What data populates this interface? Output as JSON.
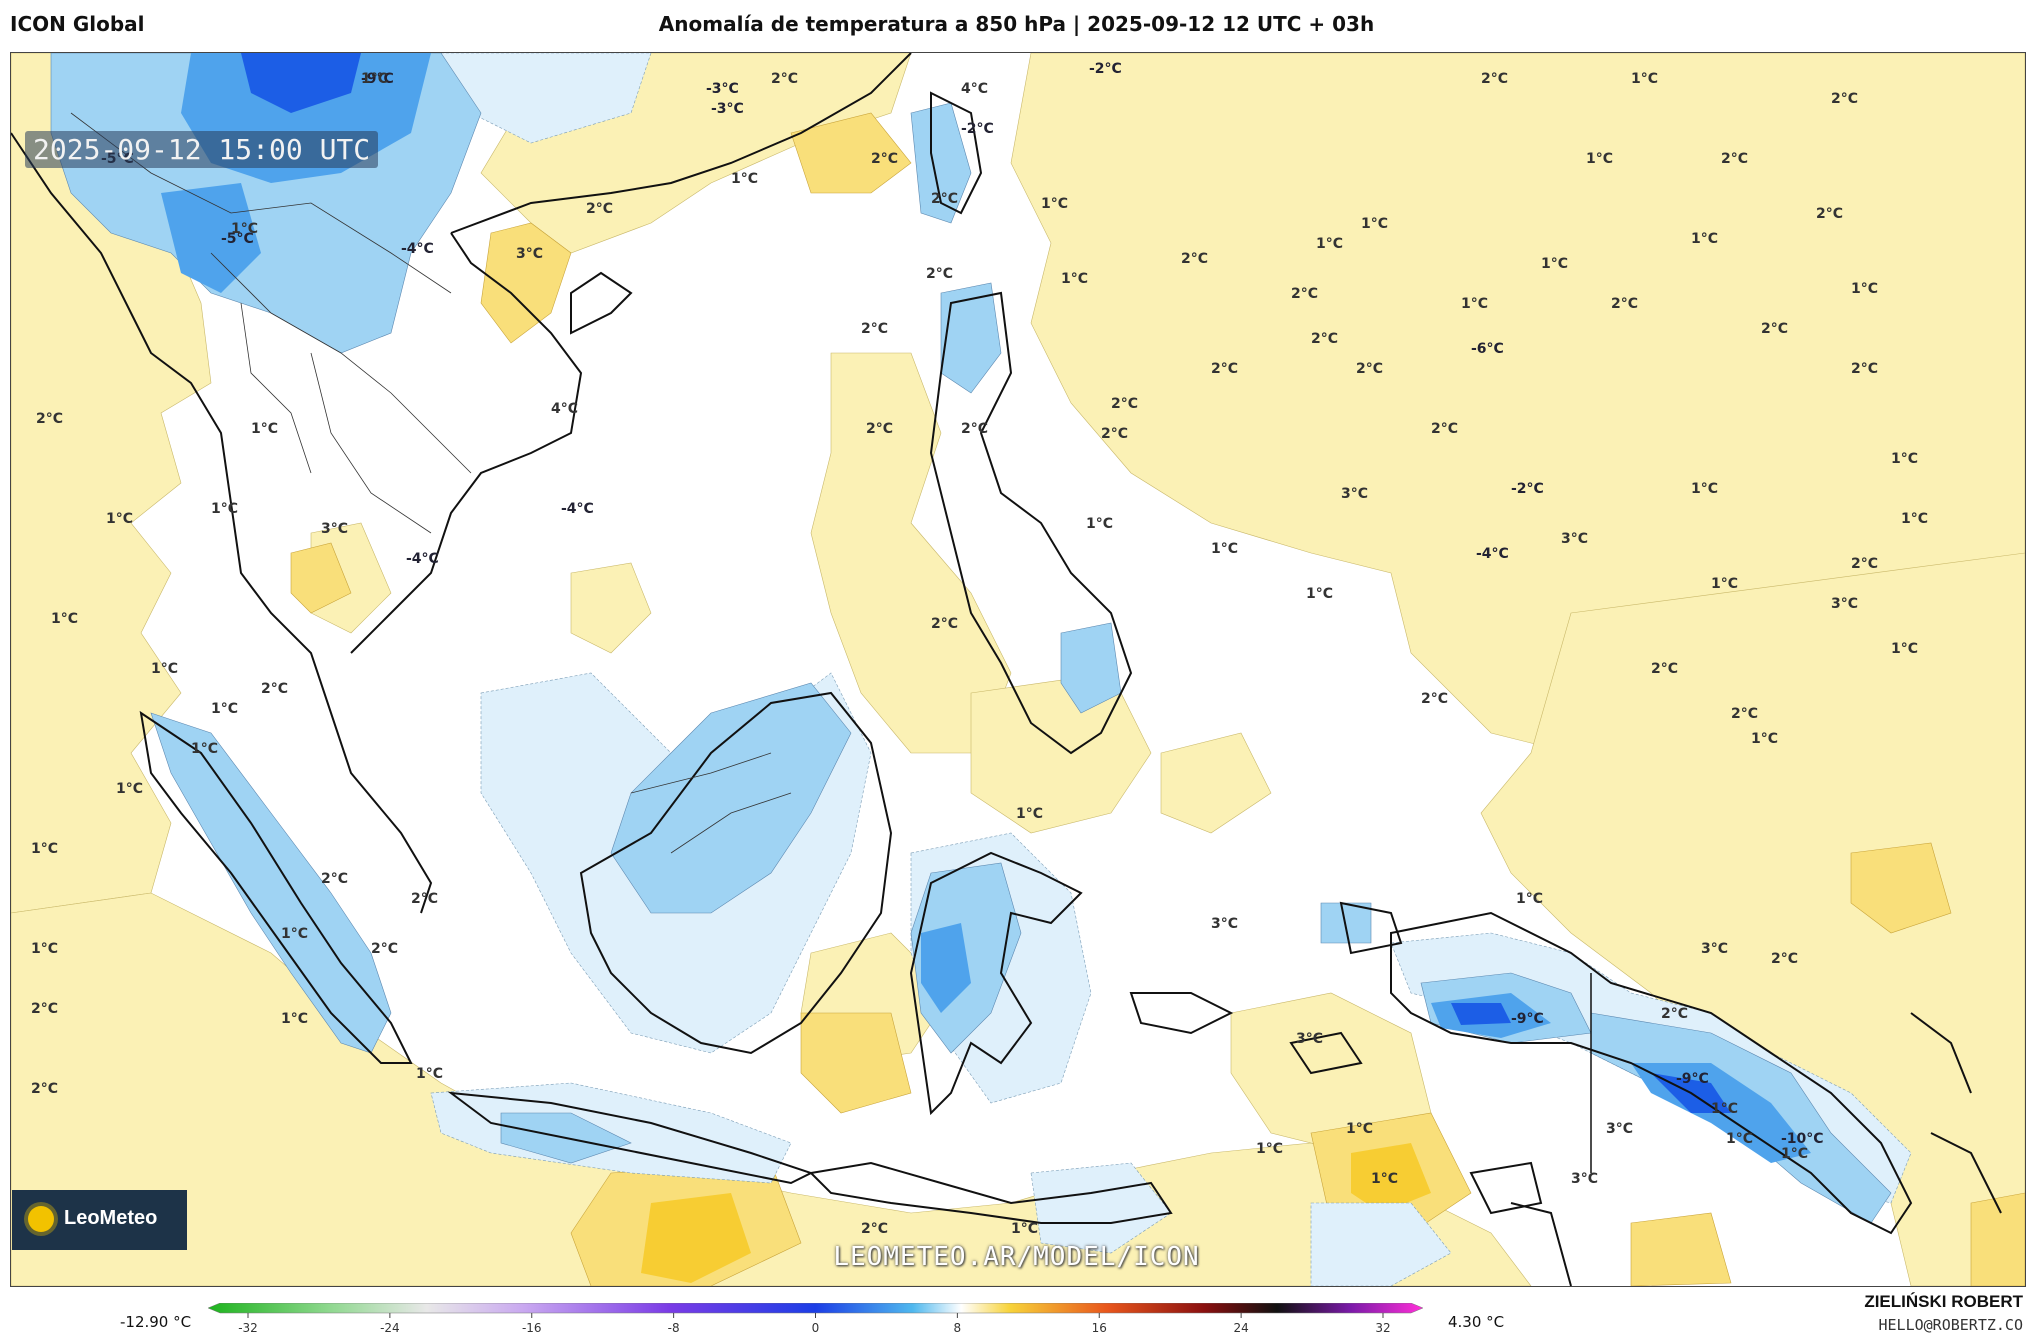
{
  "header": {
    "model": "ICON Global",
    "title": "Anomalía de temperatura a 850 hPa | 2025-09-12 12 UTC + 03h"
  },
  "map": {
    "timestamp": "2025-09-12 15:00 UTC",
    "watermark": "LEOMETEO.AR/MODEL/ICON",
    "logo_text": "LeoMeteo",
    "colors": {
      "warm_light": "#fbf1b5",
      "warm_mid": "#f9df7a",
      "warm_strong": "#f7cd33",
      "cold_light": "#dff0fb",
      "cold_mid": "#9fd3f3",
      "cold_strong": "#4fa3ec",
      "cold_deep": "#1c5ee6",
      "coast": "#111111"
    },
    "contour_labels": [
      "-9°C",
      "-5°C",
      "-5°C",
      "-4°C",
      "4°C",
      "-4°C",
      "-4°C",
      "2°C",
      "3°C",
      "-3°C",
      "2°C",
      "4°C",
      "-2°C",
      "2°C",
      "1°C",
      "2°C",
      "1°C",
      "2°C",
      "1°C",
      "2°C",
      "2°C",
      "1°C",
      "1°C",
      "1°C",
      "2°C",
      "1°C",
      "-3°C",
      "-2°C",
      "2°C",
      "2°C",
      "-6°C",
      "2°C",
      "2°C",
      "2°C",
      "2°C",
      "2°C",
      "2°C",
      "2°C",
      "2°C",
      "3°C",
      "-2°C",
      "1°C",
      "1°C",
      "2°C",
      "1°C",
      "2°C",
      "3°C",
      "1°C",
      "1°C",
      "-4°C",
      "3°C",
      "2°C",
      "1°C",
      "1°C",
      "1°C",
      "2°C",
      "1°C",
      "1°C",
      "1°C",
      "1°C",
      "2°C",
      "-9°C",
      "-9°C",
      "-10°C",
      "3°C",
      "2°C",
      "1°C",
      "1°C",
      "2°C",
      "2°C",
      "1°C",
      "2°C",
      "1°C",
      "2°C",
      "1°C",
      "2°C",
      "1°C",
      "1°C",
      "1°C",
      "1°C",
      "1°C",
      "1°C",
      "2°C",
      "2°C",
      "1°C",
      "2°C",
      "1°C",
      "1°C",
      "2°C",
      "2°C",
      "2°C",
      "1°C",
      "1°C",
      "3°C",
      "3°C",
      "1°C",
      "1°C",
      "1°C",
      "1°C",
      "3°C",
      "3°C",
      "2°C",
      "1°C",
      "3°C",
      "1°C",
      "2°C",
      "1°C",
      "2°C",
      "1°C",
      "1°C"
    ]
  },
  "colorbar": {
    "min_label": "-12.90 °C",
    "max_label": "4.30 °C",
    "ticks": [
      "-32",
      "-24",
      "-16",
      "-8",
      "0",
      "8",
      "16",
      "24",
      "32"
    ]
  },
  "footer": {
    "author": "ZIELIŃSKI ROBERT",
    "email": "HELLO@ROBERTZ.CO"
  }
}
